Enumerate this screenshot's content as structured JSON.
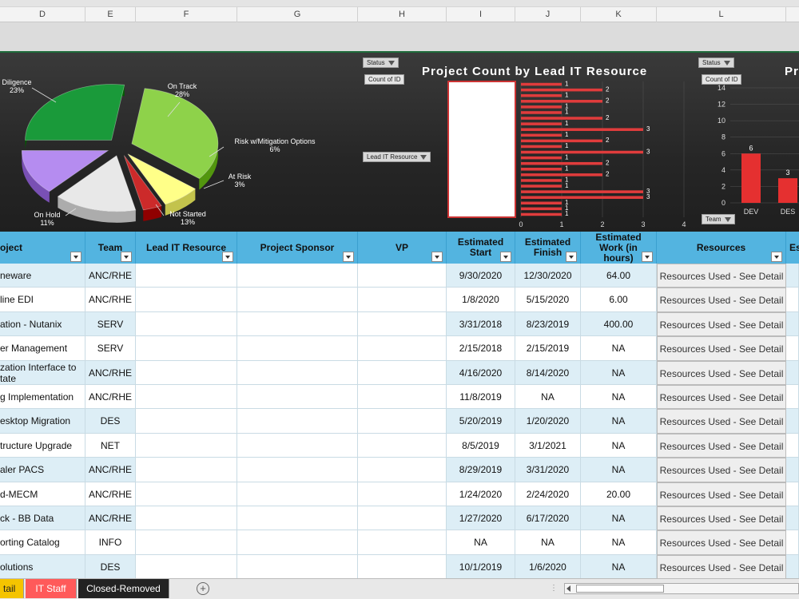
{
  "columns": [
    "D",
    "E",
    "F",
    "G",
    "H",
    "I",
    "J",
    "K",
    "L"
  ],
  "pie": {
    "slices": [
      {
        "label": "Diligence",
        "pct": "23%"
      },
      {
        "label": "On Track",
        "pct": "28%"
      },
      {
        "label": "Risk w/Mitigation Options",
        "pct": "6%"
      },
      {
        "label": "At Risk",
        "pct": "3%"
      },
      {
        "label": "Not Started",
        "pct": "13%"
      },
      {
        "label": "On Hold",
        "pct": "11%"
      }
    ]
  },
  "chart2": {
    "title": "Project Count by Lead IT Resource",
    "filter_status": "Status",
    "count_of_id": "Count of ID",
    "lead_filter": "Lead IT Resource"
  },
  "chart3": {
    "title": "Pr",
    "filter_status": "Status",
    "count_of_id": "Count of ID",
    "team_filter": "Team"
  },
  "chart_data": [
    {
      "type": "pie",
      "categories": [
        "Diligence",
        "On Track",
        "Risk w/Mitigation Options",
        "At Risk",
        "Not Started",
        "On Hold"
      ],
      "values": [
        23,
        28,
        6,
        3,
        13,
        11
      ],
      "colors": [
        "#1a9a3a",
        "#8ed24a",
        "#ffff88",
        "#cc2a2a",
        "#e8e8e8",
        "#b58cf0"
      ]
    },
    {
      "type": "bar",
      "orientation": "horizontal",
      "title": "Project Count by Lead IT Resource",
      "values": [
        1,
        2,
        1,
        2,
        1,
        1,
        2,
        1,
        3,
        1,
        2,
        1,
        3,
        1,
        2,
        1,
        2,
        1,
        1,
        3,
        3,
        1,
        1,
        1
      ],
      "xlim": [
        0,
        4
      ],
      "x_ticks": [
        "0",
        "1",
        "2",
        "3",
        "4"
      ]
    },
    {
      "type": "bar",
      "categories": [
        "DEV",
        "DES"
      ],
      "values": [
        6,
        3
      ],
      "ylim": [
        0,
        14
      ],
      "y_ticks": [
        "0",
        "2",
        "4",
        "6",
        "8",
        "10",
        "12",
        "14"
      ]
    }
  ],
  "table": {
    "headers": {
      "project": "oject",
      "team": "Team",
      "lead": "Lead IT Resource",
      "sponsor": "Project Sponsor",
      "vp": "VP",
      "start": "Estimated Start",
      "finish": "Estimated Finish",
      "work": "Estimated Work (in hours)",
      "resources": "Resources",
      "extra": "Es"
    },
    "rows": [
      {
        "project": "neware",
        "team": "ANC/RHE",
        "start": "9/30/2020",
        "finish": "12/30/2020",
        "work": "64.00",
        "resources": "Resources Used - See Detail"
      },
      {
        "project": "line EDI",
        "team": "ANC/RHE",
        "start": "1/8/2020",
        "finish": "5/15/2020",
        "work": "6.00",
        "resources": "Resources Used - See Detail"
      },
      {
        "project": "ation - Nutanix",
        "team": "SERV",
        "start": "3/31/2018",
        "finish": "8/23/2019",
        "work": "400.00",
        "resources": "Resources Used - See Detail"
      },
      {
        "project": "er Management",
        "team": "SERV",
        "start": "2/15/2018",
        "finish": "2/15/2019",
        "work": "NA",
        "resources": "Resources Used - See Detail"
      },
      {
        "project": "zation Interface to tate",
        "team": "ANC/RHE",
        "start": "4/16/2020",
        "finish": "8/14/2020",
        "work": "NA",
        "resources": "Resources Used - See Detail"
      },
      {
        "project": "g Implementation",
        "team": "ANC/RHE",
        "start": "11/8/2019",
        "finish": "NA",
        "work": "NA",
        "resources": "Resources Used - See Detail"
      },
      {
        "project": "esktop Migration",
        "team": "DES",
        "start": "5/20/2019",
        "finish": "1/20/2020",
        "work": "NA",
        "resources": "Resources Used - See Detail"
      },
      {
        "project": "tructure Upgrade",
        "team": "NET",
        "start": "8/5/2019",
        "finish": "3/1/2021",
        "work": "NA",
        "resources": "Resources Used - See Detail"
      },
      {
        "project": "aler PACS",
        "team": "ANC/RHE",
        "start": "8/29/2019",
        "finish": "3/31/2020",
        "work": "NA",
        "resources": "Resources Used - See Detail"
      },
      {
        "project": "d-MECM",
        "team": "ANC/RHE",
        "start": "1/24/2020",
        "finish": "2/24/2020",
        "work": "20.00",
        "resources": "Resources Used - See Detail"
      },
      {
        "project": "ck - BB Data",
        "team": "ANC/RHE",
        "start": "1/27/2020",
        "finish": "6/17/2020",
        "work": "NA",
        "resources": "Resources Used - See Detail"
      },
      {
        "project": "orting Catalog",
        "team": "INFO",
        "start": "NA",
        "finish": "NA",
        "work": "NA",
        "resources": "Resources Used - See Detail"
      },
      {
        "project": "olutions",
        "team": "DES",
        "start": "10/1/2019",
        "finish": "1/6/2020",
        "work": "NA",
        "resources": "Resources Used - See Detail"
      }
    ]
  },
  "sheet_tabs": [
    {
      "label": "tail",
      "color": "#f5c400"
    },
    {
      "label": "IT Staff",
      "color": "#ff5a5a"
    },
    {
      "label": "Closed-Removed",
      "color": "#222222"
    }
  ],
  "add_sheet": "+"
}
